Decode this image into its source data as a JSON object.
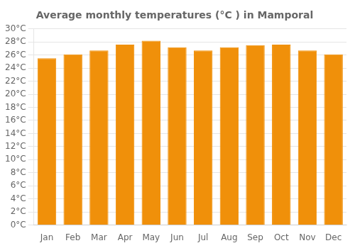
{
  "chart_data": {
    "type": "bar",
    "title": "Average monthly temperatures (°C ) in Mamporal",
    "categories": [
      "Jan",
      "Feb",
      "Mar",
      "Apr",
      "May",
      "Jun",
      "Jul",
      "Aug",
      "Sep",
      "Oct",
      "Nov",
      "Dec"
    ],
    "values": [
      25.5,
      26.1,
      26.7,
      27.6,
      28.2,
      27.2,
      26.7,
      27.2,
      27.5,
      27.6,
      26.7,
      26.1
    ],
    "color": "#F0900A",
    "ylim": [
      0,
      30
    ],
    "yticks": [
      {
        "value": 0,
        "label": "0°C"
      },
      {
        "value": 2,
        "label": "2°C"
      },
      {
        "value": 4,
        "label": "4°C"
      },
      {
        "value": 6,
        "label": "6°C"
      },
      {
        "value": 8,
        "label": "8°C"
      },
      {
        "value": 10,
        "label": "10°C"
      },
      {
        "value": 12,
        "label": "12°C"
      },
      {
        "value": 14,
        "label": "14°C"
      },
      {
        "value": 16,
        "label": "16°C"
      },
      {
        "value": 18,
        "label": "18°C"
      },
      {
        "value": 20,
        "label": "20°C"
      },
      {
        "value": 22,
        "label": "22°C"
      },
      {
        "value": 24,
        "label": "24°C"
      },
      {
        "value": 26,
        "label": "26°C"
      },
      {
        "value": 28,
        "label": "28°C"
      },
      {
        "value": 30,
        "label": "30°C"
      }
    ],
    "grid": true
  }
}
